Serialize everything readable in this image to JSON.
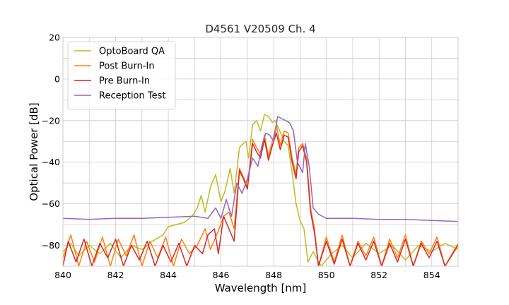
{
  "chart_data": {
    "type": "line",
    "title": "D4561 V20509 Ch. 4",
    "xlabel": "Wavelength [nm]",
    "ylabel": "Optical Power [dB]",
    "xlim": [
      840,
      855
    ],
    "ylim": [
      -90,
      20
    ],
    "xticks": [
      840,
      842,
      844,
      846,
      848,
      850,
      852,
      854
    ],
    "xtick_labels": [
      "840",
      "842",
      "844",
      "846",
      "848",
      "850",
      "852",
      "854"
    ],
    "yticks": [
      20,
      0,
      -20,
      -40,
      -60,
      -80
    ],
    "ytick_labels": [
      "20",
      "0",
      "−20",
      "−40",
      "−60",
      "−80"
    ],
    "grid": true,
    "legend_position": "top-left",
    "series": [
      {
        "name": "OptoBoard QA",
        "color": "#bcbd22",
        "points": [
          [
            840.0,
            -83
          ],
          [
            840.3,
            -79
          ],
          [
            840.6,
            -85
          ],
          [
            841.0,
            -80
          ],
          [
            841.4,
            -84
          ],
          [
            841.8,
            -79
          ],
          [
            842.2,
            -86
          ],
          [
            842.6,
            -80
          ],
          [
            843.0,
            -82
          ],
          [
            843.4,
            -78
          ],
          [
            843.8,
            -75
          ],
          [
            844.0,
            -71
          ],
          [
            844.3,
            -70
          ],
          [
            844.6,
            -69
          ],
          [
            844.9,
            -66
          ],
          [
            845.1,
            -62
          ],
          [
            845.25,
            -56
          ],
          [
            845.4,
            -64
          ],
          [
            845.6,
            -52
          ],
          [
            845.8,
            -46
          ],
          [
            846.0,
            -59
          ],
          [
            846.15,
            -54
          ],
          [
            846.35,
            -43
          ],
          [
            846.5,
            -55
          ],
          [
            846.7,
            -33
          ],
          [
            846.85,
            -31
          ],
          [
            846.95,
            -30
          ],
          [
            847.05,
            -38
          ],
          [
            847.2,
            -22
          ],
          [
            847.35,
            -20
          ],
          [
            847.5,
            -25
          ],
          [
            847.65,
            -17
          ],
          [
            847.8,
            -18
          ],
          [
            847.95,
            -21
          ],
          [
            848.05,
            -20
          ],
          [
            848.2,
            -24
          ],
          [
            848.4,
            -30
          ],
          [
            848.55,
            -32
          ],
          [
            848.7,
            -45
          ],
          [
            848.85,
            -60
          ],
          [
            849.0,
            -68
          ],
          [
            849.15,
            -72
          ],
          [
            849.3,
            -88
          ],
          [
            849.5,
            -83
          ],
          [
            849.8,
            -90
          ],
          [
            850.2,
            -84
          ],
          [
            850.6,
            -80
          ],
          [
            851.0,
            -86
          ],
          [
            851.5,
            -79
          ],
          [
            852.0,
            -84
          ],
          [
            852.5,
            -80
          ],
          [
            853.0,
            -87
          ],
          [
            853.5,
            -80
          ],
          [
            854.0,
            -83
          ],
          [
            854.5,
            -79
          ],
          [
            855.0,
            -82
          ]
        ]
      },
      {
        "name": "Post Burn-In",
        "color": "#ff7f0e",
        "points": [
          [
            840.0,
            -86
          ],
          [
            840.3,
            -75
          ],
          [
            840.6,
            -90
          ],
          [
            840.9,
            -78
          ],
          [
            841.2,
            -88
          ],
          [
            841.5,
            -76
          ],
          [
            841.8,
            -90
          ],
          [
            842.1,
            -77
          ],
          [
            842.4,
            -85
          ],
          [
            842.7,
            -75
          ],
          [
            843.0,
            -90
          ],
          [
            843.3,
            -78
          ],
          [
            843.6,
            -86
          ],
          [
            843.9,
            -76
          ],
          [
            844.2,
            -90
          ],
          [
            844.5,
            -77
          ],
          [
            844.8,
            -84
          ],
          [
            845.1,
            -80
          ],
          [
            845.4,
            -72
          ],
          [
            845.6,
            -82
          ],
          [
            845.9,
            -73
          ],
          [
            846.1,
            -66
          ],
          [
            846.3,
            -64
          ],
          [
            846.5,
            -72
          ],
          [
            846.7,
            -43
          ],
          [
            846.85,
            -47
          ],
          [
            847.0,
            -52
          ],
          [
            847.2,
            -29
          ],
          [
            847.35,
            -33
          ],
          [
            847.5,
            -36
          ],
          [
            847.65,
            -27
          ],
          [
            847.8,
            -37
          ],
          [
            847.95,
            -30
          ],
          [
            848.1,
            -22
          ],
          [
            848.25,
            -32
          ],
          [
            848.4,
            -25
          ],
          [
            848.55,
            -26
          ],
          [
            848.7,
            -38
          ],
          [
            848.85,
            -46
          ],
          [
            848.95,
            -33
          ],
          [
            849.1,
            -31
          ],
          [
            849.25,
            -38
          ],
          [
            849.4,
            -62
          ],
          [
            849.55,
            -72
          ],
          [
            849.7,
            -90
          ],
          [
            850.0,
            -76
          ],
          [
            850.3,
            -88
          ],
          [
            850.6,
            -75
          ],
          [
            850.9,
            -90
          ],
          [
            851.2,
            -78
          ],
          [
            851.5,
            -85
          ],
          [
            851.8,
            -76
          ],
          [
            852.1,
            -90
          ],
          [
            852.4,
            -77
          ],
          [
            852.7,
            -86
          ],
          [
            853.0,
            -75
          ],
          [
            853.3,
            -90
          ],
          [
            853.6,
            -78
          ],
          [
            853.9,
            -84
          ],
          [
            854.2,
            -76
          ],
          [
            854.5,
            -90
          ],
          [
            855.0,
            -79
          ]
        ]
      },
      {
        "name": "Pre Burn-In",
        "color": "#d62728",
        "points": [
          [
            840.0,
            -90
          ],
          [
            840.2,
            -78
          ],
          [
            840.5,
            -88
          ],
          [
            840.8,
            -77
          ],
          [
            841.1,
            -90
          ],
          [
            841.4,
            -79
          ],
          [
            841.7,
            -86
          ],
          [
            842.0,
            -77
          ],
          [
            842.3,
            -90
          ],
          [
            842.6,
            -80
          ],
          [
            842.9,
            -87
          ],
          [
            843.2,
            -78
          ],
          [
            843.5,
            -90
          ],
          [
            843.8,
            -80
          ],
          [
            844.1,
            -88
          ],
          [
            844.4,
            -79
          ],
          [
            844.7,
            -90
          ],
          [
            845.0,
            -80
          ],
          [
            845.3,
            -84
          ],
          [
            845.5,
            -75
          ],
          [
            845.75,
            -72
          ],
          [
            845.9,
            -84
          ],
          [
            846.1,
            -66
          ],
          [
            846.3,
            -72
          ],
          [
            846.5,
            -78
          ],
          [
            846.7,
            -44
          ],
          [
            846.85,
            -48
          ],
          [
            847.0,
            -53
          ],
          [
            847.2,
            -31
          ],
          [
            847.35,
            -35
          ],
          [
            847.5,
            -38
          ],
          [
            847.65,
            -29
          ],
          [
            847.8,
            -39
          ],
          [
            847.95,
            -32
          ],
          [
            848.1,
            -26
          ],
          [
            848.25,
            -34
          ],
          [
            848.4,
            -27
          ],
          [
            848.55,
            -28
          ],
          [
            848.7,
            -40
          ],
          [
            848.85,
            -48
          ],
          [
            848.95,
            -35
          ],
          [
            849.1,
            -32
          ],
          [
            849.25,
            -40
          ],
          [
            849.4,
            -64
          ],
          [
            849.55,
            -74
          ],
          [
            849.7,
            -90
          ],
          [
            850.0,
            -78
          ],
          [
            850.3,
            -89
          ],
          [
            850.6,
            -77
          ],
          [
            850.9,
            -90
          ],
          [
            851.2,
            -79
          ],
          [
            851.5,
            -87
          ],
          [
            851.8,
            -78
          ],
          [
            852.1,
            -90
          ],
          [
            852.4,
            -79
          ],
          [
            852.7,
            -88
          ],
          [
            853.0,
            -77
          ],
          [
            853.3,
            -90
          ],
          [
            853.6,
            -79
          ],
          [
            853.9,
            -86
          ],
          [
            854.2,
            -78
          ],
          [
            854.5,
            -90
          ],
          [
            855.0,
            -80
          ]
        ]
      },
      {
        "name": "Reception Test",
        "color": "#9467bd",
        "points": [
          [
            840.0,
            -67
          ],
          [
            841.0,
            -67.5
          ],
          [
            842.0,
            -67
          ],
          [
            843.0,
            -67
          ],
          [
            844.0,
            -66.5
          ],
          [
            845.0,
            -66
          ],
          [
            845.5,
            -67
          ],
          [
            845.8,
            -62
          ],
          [
            846.0,
            -67
          ],
          [
            846.2,
            -58
          ],
          [
            846.4,
            -66
          ],
          [
            846.6,
            -50
          ],
          [
            846.8,
            -55
          ],
          [
            847.0,
            -48
          ],
          [
            847.2,
            -38
          ],
          [
            847.4,
            -42
          ],
          [
            847.55,
            -32
          ],
          [
            847.7,
            -26
          ],
          [
            847.85,
            -27
          ],
          [
            848.0,
            -30
          ],
          [
            848.15,
            -18
          ],
          [
            848.3,
            -19
          ],
          [
            848.45,
            -20
          ],
          [
            848.6,
            -21
          ],
          [
            848.75,
            -25
          ],
          [
            848.9,
            -40
          ],
          [
            849.1,
            -45
          ],
          [
            849.2,
            -31
          ],
          [
            849.35,
            -42
          ],
          [
            849.5,
            -62
          ],
          [
            849.7,
            -65
          ],
          [
            850.0,
            -67
          ],
          [
            851.0,
            -67
          ],
          [
            852.0,
            -67.5
          ],
          [
            853.0,
            -67.5
          ],
          [
            854.0,
            -68
          ],
          [
            855.0,
            -68.5
          ]
        ]
      }
    ]
  }
}
